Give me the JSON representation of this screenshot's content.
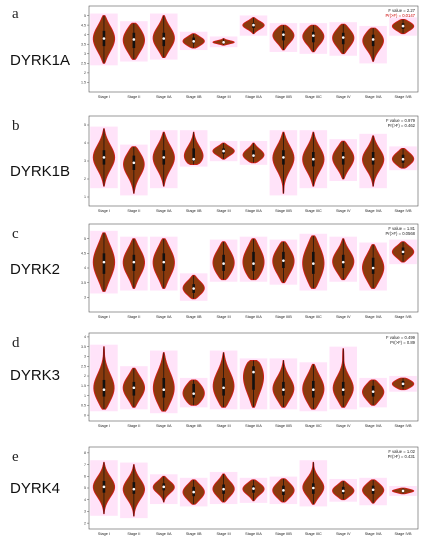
{
  "figure": {
    "categories": [
      "Stage I",
      "Stage II",
      "Stage IIA",
      "Stage IIB",
      "Stage III",
      "Stage IIIA",
      "Stage IIIB",
      "Stage IIIC",
      "Stage IV",
      "Stage IVA",
      "Stage IVB"
    ],
    "colors": {
      "violin_fill": "#8a3a0d",
      "violin_stroke": "#d81a1a",
      "box": "#111111",
      "median": "#ffffff",
      "highlight": "#ff66dd"
    }
  },
  "chart_data": [
    {
      "type": "violin",
      "panel": "a",
      "gene": "DYRK1A",
      "ylim": [
        1.0,
        5.5
      ],
      "ticks": [
        1.5,
        2.0,
        2.5,
        3.0,
        3.5,
        4.0,
        4.5,
        5.0
      ],
      "stat_f": "F value = 2.27",
      "stat_p": "Pr(>F) = 0.0147",
      "p_red": true,
      "series": [
        {
          "x": "Stage I",
          "min": 2.5,
          "q1": 3.4,
          "median": 3.8,
          "q3": 4.2,
          "max": 5.0
        },
        {
          "x": "Stage II",
          "min": 2.7,
          "q1": 3.3,
          "median": 3.75,
          "q3": 4.1,
          "max": 4.6
        },
        {
          "x": "Stage IIA",
          "min": 2.8,
          "q1": 3.4,
          "median": 3.8,
          "q3": 4.1,
          "max": 5.0
        },
        {
          "x": "Stage IIB",
          "min": 3.3,
          "q1": 3.55,
          "median": 3.65,
          "q3": 3.85,
          "max": 4.05
        },
        {
          "x": "Stage III",
          "min": 3.45,
          "q1": 3.55,
          "median": 3.6,
          "q3": 3.65,
          "max": 3.8
        },
        {
          "x": "Stage IIIA",
          "min": 4.05,
          "q1": 4.35,
          "median": 4.5,
          "q3": 4.6,
          "max": 4.9
        },
        {
          "x": "Stage IIIB",
          "min": 3.2,
          "q1": 3.7,
          "median": 4.0,
          "q3": 4.2,
          "max": 4.5
        },
        {
          "x": "Stage IIIC",
          "min": 3.1,
          "q1": 3.6,
          "median": 3.95,
          "q3": 4.15,
          "max": 4.5
        },
        {
          "x": "Stage IV",
          "min": 3.0,
          "q1": 3.5,
          "median": 3.85,
          "q3": 4.1,
          "max": 4.55
        },
        {
          "x": "Stage IVA",
          "min": 2.6,
          "q1": 3.4,
          "median": 3.75,
          "q3": 4.0,
          "max": 4.35
        },
        {
          "x": "Stage IVB",
          "min": 4.05,
          "q1": 4.3,
          "median": 4.45,
          "q3": 4.6,
          "max": 4.8
        }
      ]
    },
    {
      "type": "violin",
      "panel": "b",
      "gene": "DYRK1B",
      "ylim": [
        0.5,
        5.5
      ],
      "ticks": [
        1,
        2,
        3,
        4,
        5
      ],
      "stat_f": "F value = 0.979",
      "stat_p": "Pr(>F) = 0.462",
      "p_red": false,
      "series": [
        {
          "x": "Stage I",
          "min": 1.6,
          "q1": 2.8,
          "median": 3.2,
          "q3": 3.6,
          "max": 4.8
        },
        {
          "x": "Stage II",
          "min": 1.2,
          "q1": 2.5,
          "median": 2.9,
          "q3": 3.3,
          "max": 3.8
        },
        {
          "x": "Stage IIA",
          "min": 1.6,
          "q1": 2.8,
          "median": 3.2,
          "q3": 3.6,
          "max": 4.6
        },
        {
          "x": "Stage IIB",
          "min": 2.8,
          "q1": 3.0,
          "median": 3.1,
          "q3": 3.7,
          "max": 4.6
        },
        {
          "x": "Stage III",
          "min": 3.1,
          "q1": 3.4,
          "median": 3.55,
          "q3": 3.7,
          "max": 4.0
        },
        {
          "x": "Stage IIIA",
          "min": 2.9,
          "q1": 3.2,
          "median": 3.3,
          "q3": 3.6,
          "max": 4.0
        },
        {
          "x": "Stage IIIB",
          "min": 1.2,
          "q1": 2.8,
          "median": 3.2,
          "q3": 3.6,
          "max": 4.6
        },
        {
          "x": "Stage IIIC",
          "min": 1.6,
          "q1": 2.7,
          "median": 3.1,
          "q3": 3.5,
          "max": 4.6
        },
        {
          "x": "Stage IV",
          "min": 2.0,
          "q1": 2.8,
          "median": 3.2,
          "q3": 3.5,
          "max": 4.1
        },
        {
          "x": "Stage IVA",
          "min": 1.6,
          "q1": 2.8,
          "median": 3.1,
          "q3": 3.5,
          "max": 4.4
        },
        {
          "x": "Stage IVB",
          "min": 2.6,
          "q1": 2.9,
          "median": 3.1,
          "q3": 3.35,
          "max": 3.7
        }
      ]
    },
    {
      "type": "violin",
      "panel": "c",
      "gene": "DYRK2",
      "ylim": [
        2.5,
        5.5
      ],
      "ticks": [
        3.0,
        3.5,
        4.0,
        4.5,
        5.0
      ],
      "stat_f": "F value = 1.81",
      "stat_p": "Pr(>F) = 0.0568",
      "p_red": false,
      "series": [
        {
          "x": "Stage I",
          "min": 3.2,
          "q1": 3.8,
          "median": 4.2,
          "q3": 4.5,
          "max": 5.2
        },
        {
          "x": "Stage II",
          "min": 3.3,
          "q1": 3.9,
          "median": 4.2,
          "q3": 4.45,
          "max": 5.0
        },
        {
          "x": "Stage IIA",
          "min": 3.3,
          "q1": 3.9,
          "median": 4.2,
          "q3": 4.5,
          "max": 5.0
        },
        {
          "x": "Stage IIB",
          "min": 2.95,
          "q1": 3.15,
          "median": 3.3,
          "q3": 3.45,
          "max": 3.75
        },
        {
          "x": "Stage III",
          "min": 3.6,
          "q1": 3.9,
          "median": 4.15,
          "q3": 4.45,
          "max": 4.9
        },
        {
          "x": "Stage IIIA",
          "min": 3.6,
          "q1": 3.9,
          "median": 4.15,
          "q3": 4.55,
          "max": 5.0
        },
        {
          "x": "Stage IIIB",
          "min": 3.5,
          "q1": 4.0,
          "median": 4.25,
          "q3": 4.55,
          "max": 4.9
        },
        {
          "x": "Stage IIIC",
          "min": 3.3,
          "q1": 3.8,
          "median": 4.15,
          "q3": 4.55,
          "max": 5.1
        },
        {
          "x": "Stage IV",
          "min": 3.6,
          "q1": 4.0,
          "median": 4.2,
          "q3": 4.45,
          "max": 5.0
        },
        {
          "x": "Stage IVA",
          "min": 3.3,
          "q1": 3.8,
          "median": 4.0,
          "q3": 4.35,
          "max": 4.8
        },
        {
          "x": "Stage IVB",
          "min": 4.2,
          "q1": 4.45,
          "median": 4.55,
          "q3": 4.7,
          "max": 4.9
        }
      ]
    },
    {
      "type": "violin",
      "panel": "d",
      "gene": "DYRK3",
      "ylim": [
        -0.3,
        4.2
      ],
      "ticks": [
        0.0,
        0.5,
        1.0,
        1.5,
        2.0,
        2.5,
        3.0,
        3.5,
        4.0
      ],
      "stat_f": "F value = 0.499",
      "stat_p": "Pr(>F) = 0.89",
      "p_red": false,
      "series": [
        {
          "x": "Stage I",
          "min": 0.3,
          "q1": 0.95,
          "median": 1.3,
          "q3": 1.8,
          "max": 3.5
        },
        {
          "x": "Stage II",
          "min": 0.4,
          "q1": 1.0,
          "median": 1.4,
          "q3": 1.7,
          "max": 2.4
        },
        {
          "x": "Stage IIA",
          "min": 0.2,
          "q1": 0.9,
          "median": 1.3,
          "q3": 1.9,
          "max": 3.2
        },
        {
          "x": "Stage IIB",
          "min": 0.5,
          "q1": 0.9,
          "median": 1.1,
          "q3": 1.6,
          "max": 1.8
        },
        {
          "x": "Stage III",
          "min": 0.4,
          "q1": 1.0,
          "median": 1.4,
          "q3": 1.9,
          "max": 3.2
        },
        {
          "x": "Stage IIIA",
          "min": 0.4,
          "q1": 1.3,
          "median": 2.2,
          "q3": 2.5,
          "max": 2.8
        },
        {
          "x": "Stage IIIB",
          "min": 0.4,
          "q1": 1.0,
          "median": 1.3,
          "q3": 1.7,
          "max": 2.8
        },
        {
          "x": "Stage IIIC",
          "min": 0.3,
          "q1": 0.9,
          "median": 1.3,
          "q3": 1.75,
          "max": 2.6
        },
        {
          "x": "Stage IV",
          "min": 0.4,
          "q1": 1.0,
          "median": 1.3,
          "q3": 1.7,
          "max": 3.4
        },
        {
          "x": "Stage IVA",
          "min": 0.5,
          "q1": 0.95,
          "median": 1.2,
          "q3": 1.5,
          "max": 1.8
        },
        {
          "x": "Stage IVB",
          "min": 1.3,
          "q1": 1.45,
          "median": 1.6,
          "q3": 1.75,
          "max": 1.9
        }
      ]
    },
    {
      "type": "violin",
      "panel": "e",
      "gene": "DYRK4",
      "ylim": [
        1.5,
        8.5
      ],
      "ticks": [
        2,
        3,
        4,
        5,
        6,
        7,
        8
      ],
      "stat_f": "F value = 1.02",
      "stat_p": "Pr(>F) = 0.431",
      "p_red": false,
      "series": [
        {
          "x": "Stage I",
          "min": 2.8,
          "q1": 4.6,
          "median": 5.1,
          "q3": 5.6,
          "max": 7.2
        },
        {
          "x": "Stage II",
          "min": 2.6,
          "q1": 4.5,
          "median": 4.9,
          "q3": 5.5,
          "max": 7.0
        },
        {
          "x": "Stage IIA",
          "min": 3.8,
          "q1": 4.8,
          "median": 5.1,
          "q3": 5.4,
          "max": 6.0
        },
        {
          "x": "Stage IIB",
          "min": 3.6,
          "q1": 4.3,
          "median": 4.65,
          "q3": 5.1,
          "max": 5.7
        },
        {
          "x": "Stage III",
          "min": 3.8,
          "q1": 4.5,
          "median": 4.9,
          "q3": 5.3,
          "max": 6.2
        },
        {
          "x": "Stage IIIA",
          "min": 3.9,
          "q1": 4.6,
          "median": 4.95,
          "q3": 5.2,
          "max": 5.7
        },
        {
          "x": "Stage IIIB",
          "min": 3.8,
          "q1": 4.4,
          "median": 4.8,
          "q3": 5.2,
          "max": 5.8
        },
        {
          "x": "Stage IIIC",
          "min": 3.6,
          "q1": 4.5,
          "median": 5.0,
          "q3": 5.4,
          "max": 7.2
        },
        {
          "x": "Stage IV",
          "min": 4.0,
          "q1": 4.5,
          "median": 4.75,
          "q3": 5.1,
          "max": 5.6
        },
        {
          "x": "Stage IVA",
          "min": 3.7,
          "q1": 4.5,
          "median": 4.85,
          "q3": 5.2,
          "max": 5.7
        },
        {
          "x": "Stage IVB",
          "min": 4.5,
          "q1": 4.65,
          "median": 4.75,
          "q3": 4.85,
          "max": 5.0
        }
      ]
    }
  ]
}
